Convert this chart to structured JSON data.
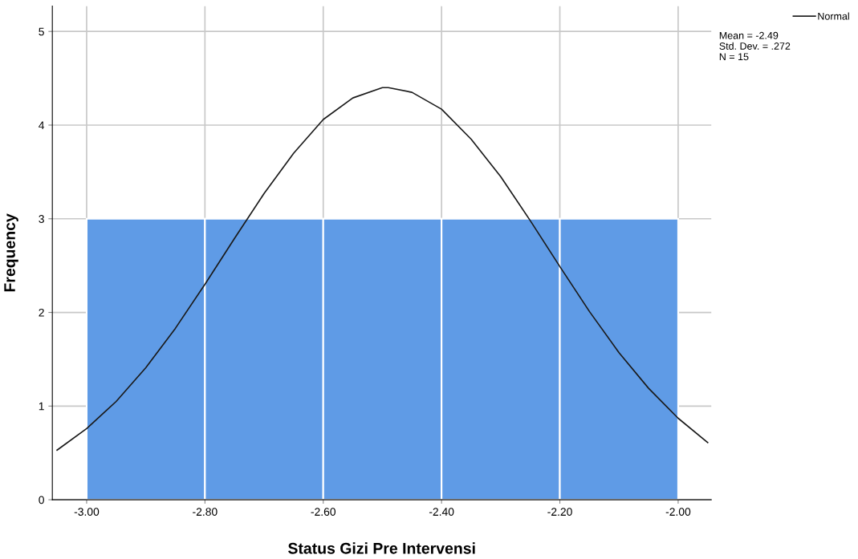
{
  "chart_data": {
    "type": "histogram",
    "xlabel": "Status Gizi Pre Intervensi",
    "ylabel": "Frequency",
    "bins": [
      -3.0,
      -2.8,
      -2.6,
      -2.4,
      -2.2,
      -2.0
    ],
    "values": [
      3,
      3,
      3,
      3,
      3
    ],
    "color": "#5f9be6",
    "series": [
      {
        "name": "Normal",
        "type": "line",
        "color": "#1a1a1a",
        "x": [
          -3.05,
          -3.0,
          -2.95,
          -2.9,
          -2.85,
          -2.8,
          -2.75,
          -2.7,
          -2.65,
          -2.6,
          -2.55,
          -2.5,
          -2.49,
          -2.45,
          -2.4,
          -2.35,
          -2.3,
          -2.25,
          -2.2,
          -2.15,
          -2.1,
          -2.05,
          -2.0,
          -1.95
        ],
        "values": [
          0.53,
          0.76,
          1.05,
          1.41,
          1.83,
          2.3,
          2.79,
          3.27,
          3.7,
          4.06,
          4.29,
          4.4,
          4.4,
          4.35,
          4.17,
          3.85,
          3.45,
          2.98,
          2.49,
          2.01,
          1.57,
          1.19,
          0.87,
          0.61
        ]
      }
    ],
    "annotations": [
      "Mean = -2.49",
      "Std. Dev. = .272",
      "N = 15"
    ],
    "xlim": [
      -3.058,
      -1.944
    ],
    "ylim": [
      0,
      5.27
    ],
    "xticks": [
      {
        "value": -3.0,
        "label": "-3.00"
      },
      {
        "value": -2.8,
        "label": "-2.80"
      },
      {
        "value": -2.6,
        "label": "-2.60"
      },
      {
        "value": -2.4,
        "label": "-2.40"
      },
      {
        "value": -2.2,
        "label": "-2.20"
      },
      {
        "value": -2.0,
        "label": "-2.00"
      }
    ],
    "yticks": [
      0,
      1,
      2,
      3,
      4,
      5
    ],
    "grid": true,
    "legend": "top right"
  }
}
